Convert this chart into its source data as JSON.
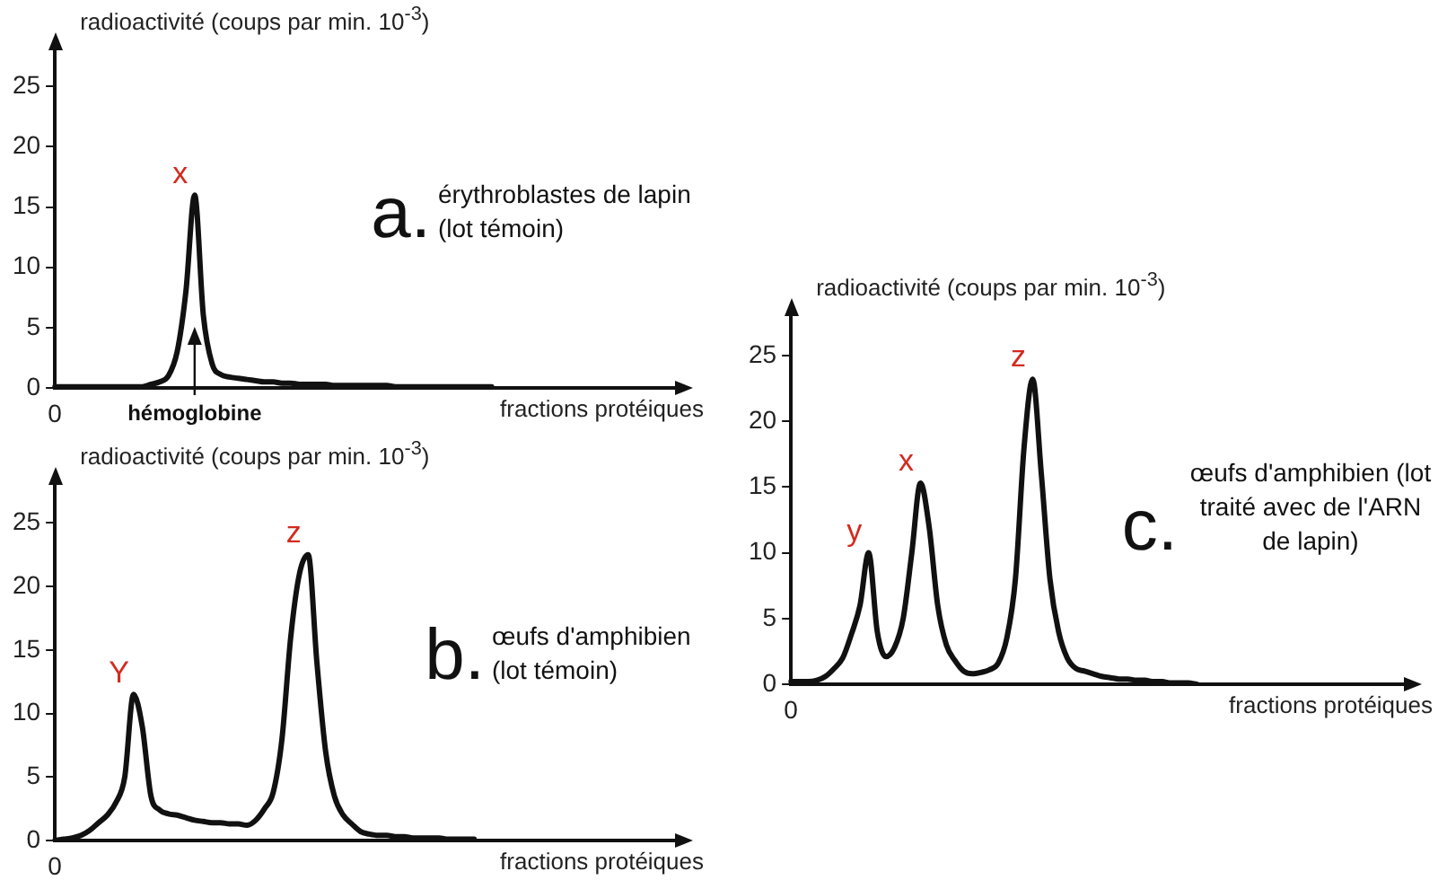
{
  "chart_data": [
    {
      "type": "line",
      "title": "a.",
      "subtitle": "érythroblastes de lapin (lot témoin)",
      "ylabel": "radioactivité (coups par min. 10$^{-3}$)",
      "xlabel": "fractions protéiques",
      "ylim": [
        0,
        28
      ],
      "yticks": [
        0,
        5,
        10,
        15,
        20,
        25
      ],
      "grid": false,
      "legend": false,
      "marker": "none",
      "line_style": "solid",
      "categories": [
        null,
        null,
        null,
        null,
        null,
        null,
        null,
        null,
        null,
        null,
        null,
        null,
        null,
        null,
        null,
        null,
        null,
        null,
        null,
        null,
        null,
        null,
        null,
        null,
        null,
        null,
        null,
        null,
        null,
        null,
        null,
        null,
        null,
        null,
        null,
        null,
        null,
        null,
        null,
        null,
        null,
        null,
        null,
        null,
        null,
        null,
        null,
        null,
        null,
        null,
        null,
        null,
        null,
        null,
        null,
        null,
        null,
        null,
        null,
        null,
        null,
        null,
        null,
        null,
        null,
        null,
        null,
        null,
        null,
        null,
        null,
        null
      ],
      "series": [
        {
          "color": "#111111",
          "values": [
            0.1,
            0.1,
            0.1,
            0.1,
            0.1,
            0.1,
            0.1,
            0.1,
            0.1,
            0.1,
            0.1,
            0.3,
            0.5,
            1,
            3,
            8,
            16,
            6,
            2,
            1.1,
            0.9,
            0.8,
            0.7,
            0.6,
            0.5,
            0.5,
            0.4,
            0.4,
            0.3,
            0.3,
            0.3,
            0.3,
            0.2,
            0.2,
            0.2,
            0.2,
            0.2,
            0.2,
            0.2,
            0.1,
            0.1,
            0.1,
            0.1,
            0.1,
            0.1,
            0.1,
            0.1,
            0.1,
            0.1,
            0.1,
            0.1,
            null,
            null,
            null,
            null,
            null,
            null,
            null,
            null,
            null,
            null,
            null,
            null,
            null,
            null,
            null,
            null,
            null,
            null,
            null,
            null,
            null
          ]
        }
      ],
      "annotations": [
        "x",
        "hémoglobine",
        "0"
      ]
    },
    {
      "type": "line",
      "title": "b.",
      "subtitle": "œufs d'amphibien (lot témoin)",
      "ylabel": "radioactivité (coups par min. 10$^{-3}$)",
      "xlabel": "fractions protéiques",
      "ylim": [
        0,
        28
      ],
      "yticks": [
        0,
        5,
        10,
        15,
        20,
        25
      ],
      "grid": false,
      "legend": false,
      "marker": "none",
      "line_style": "solid",
      "categories": [
        null,
        null,
        null,
        null,
        null,
        null,
        null,
        null,
        null,
        null,
        null,
        null,
        null,
        null,
        null,
        null,
        null,
        null,
        null,
        null,
        null,
        null,
        null,
        null,
        null,
        null,
        null,
        null,
        null,
        null,
        null,
        null,
        null,
        null,
        null,
        null,
        null,
        null,
        null,
        null,
        null,
        null,
        null,
        null,
        null,
        null,
        null,
        null,
        null,
        null,
        null,
        null,
        null,
        null,
        null,
        null,
        null,
        null,
        null,
        null,
        null,
        null,
        null,
        null,
        null,
        null,
        null,
        null,
        null,
        null,
        null,
        null
      ],
      "series": [
        {
          "color": "#111111",
          "values": [
            0,
            0.1,
            0.2,
            0.4,
            0.8,
            1.4,
            2,
            3,
            5,
            11.5,
            9,
            3.5,
            2.4,
            2.1,
            2,
            1.8,
            1.6,
            1.5,
            1.4,
            1.4,
            1.3,
            1.3,
            1.2,
            1.6,
            2.5,
            3.8,
            8,
            16,
            21,
            22.5,
            14,
            7,
            3.5,
            2,
            1.3,
            0.7,
            0.5,
            0.4,
            0.4,
            0.3,
            0.3,
            0.2,
            0.2,
            0.2,
            0.2,
            0.1,
            0.1,
            0.1,
            0.1,
            null,
            null,
            null,
            null,
            null,
            null,
            null,
            null,
            null,
            null,
            null,
            null,
            null,
            null,
            null,
            null,
            null,
            null,
            null,
            null,
            null,
            null,
            null
          ]
        }
      ],
      "annotations": [
        "Y",
        "z",
        "0"
      ]
    },
    {
      "type": "line",
      "title": "c.",
      "subtitle": "œufs d'amphibien (lot traité avec de l'ARN de lapin)",
      "ylabel": "radioactivité (coups par min. 10$^{-3}$)",
      "xlabel": "fractions protéiques",
      "ylim": [
        0,
        28
      ],
      "yticks": [
        0,
        5,
        10,
        15,
        20,
        25
      ],
      "grid": false,
      "legend": false,
      "marker": "none",
      "line_style": "solid",
      "categories": [
        null,
        null,
        null,
        null,
        null,
        null,
        null,
        null,
        null,
        null,
        null,
        null,
        null,
        null,
        null,
        null,
        null,
        null,
        null,
        null,
        null,
        null,
        null,
        null,
        null,
        null,
        null,
        null,
        null,
        null,
        null,
        null,
        null,
        null,
        null,
        null,
        null,
        null,
        null,
        null,
        null,
        null,
        null,
        null,
        null,
        null,
        null,
        null,
        null,
        null,
        null,
        null,
        null,
        null,
        null,
        null,
        null,
        null,
        null,
        null,
        null,
        null,
        null,
        null,
        null,
        null,
        null,
        null,
        null,
        null,
        null,
        null
      ],
      "series": [
        {
          "color": "#111111",
          "values": [
            0.2,
            0.2,
            0.2,
            0.3,
            0.6,
            1.2,
            2,
            3.8,
            6,
            10,
            4,
            2.1,
            2.8,
            5,
            10,
            15.3,
            12,
            6,
            3,
            1.8,
            1,
            0.8,
            0.9,
            1.1,
            1.6,
            3.5,
            8,
            18,
            23.2,
            16,
            8,
            4,
            2,
            1.2,
            1,
            0.8,
            0.6,
            0.5,
            0.4,
            0.4,
            0.3,
            0.3,
            0.2,
            0.2,
            0.1,
            0.1,
            0.1,
            0,
            null,
            null,
            null,
            null,
            null,
            null,
            null,
            null,
            null,
            null,
            null,
            null,
            null,
            null,
            null,
            null,
            null,
            null,
            null,
            null,
            null,
            null,
            null,
            null
          ]
        }
      ],
      "annotations": [
        "y",
        "x",
        "z",
        "0"
      ]
    }
  ]
}
